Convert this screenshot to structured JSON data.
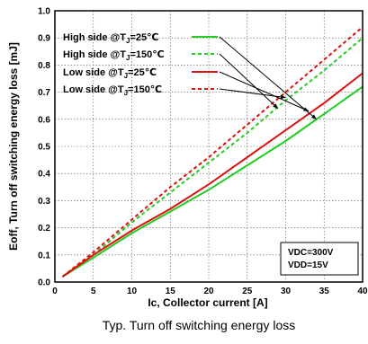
{
  "chart_data": {
    "type": "line",
    "title": "",
    "caption": "Typ. Turn off switching energy loss",
    "xlabel": "Ic, Collector current [A]",
    "ylabel": "Eoff, Turn off switching energy loss [mJ]",
    "xlim": [
      0,
      40
    ],
    "ylim": [
      0,
      1.0
    ],
    "xticks": [
      "0",
      "5",
      "10",
      "15",
      "20",
      "25",
      "30",
      "35",
      "40"
    ],
    "yticks": [
      "0.0",
      "0.1",
      "0.2",
      "0.3",
      "0.4",
      "0.5",
      "0.6",
      "0.7",
      "0.8",
      "0.9",
      "1.0"
    ],
    "grid": true,
    "legend_position": "top-left",
    "conditions": [
      "VDC=300V",
      "VDD=15V"
    ],
    "series": [
      {
        "name": "High side @TJ=25℃",
        "legend": {
          "prefix": "High side @T",
          "sub": "J",
          "suffix": "=25℃"
        },
        "color": "#22cc22",
        "dash": "solid",
        "x": [
          1,
          5,
          10,
          15,
          20,
          25,
          30,
          35,
          40
        ],
        "y": [
          0.02,
          0.09,
          0.18,
          0.26,
          0.34,
          0.43,
          0.52,
          0.62,
          0.72
        ]
      },
      {
        "name": "High side @TJ=150℃",
        "legend": {
          "prefix": "High side @T",
          "sub": "J",
          "suffix": "=150℃"
        },
        "color": "#22cc22",
        "dash": "dash",
        "x": [
          1,
          5,
          10,
          15,
          20,
          25,
          30,
          35,
          40
        ],
        "y": [
          0.02,
          0.1,
          0.22,
          0.33,
          0.44,
          0.55,
          0.67,
          0.78,
          0.9
        ]
      },
      {
        "name": "Low side @TJ=25℃",
        "legend": {
          "prefix": "Low side @T",
          "sub": "J",
          "suffix": "=25℃"
        },
        "color": "#dd1111",
        "dash": "solid",
        "x": [
          1,
          5,
          10,
          15,
          20,
          25,
          30,
          35,
          40
        ],
        "y": [
          0.02,
          0.1,
          0.19,
          0.27,
          0.36,
          0.46,
          0.56,
          0.66,
          0.77
        ]
      },
      {
        "name": "Low side @TJ=150℃",
        "legend": {
          "prefix": "Low side @T",
          "sub": "J",
          "suffix": "=150℃"
        },
        "color": "#dd1111",
        "dash": "dash",
        "x": [
          1,
          5,
          10,
          15,
          20,
          25,
          30,
          35,
          40
        ],
        "y": [
          0.02,
          0.11,
          0.23,
          0.35,
          0.46,
          0.58,
          0.7,
          0.82,
          0.94
        ]
      }
    ],
    "annotations": [
      {
        "series": 0,
        "target": [
          34,
          0.6
        ]
      },
      {
        "series": 1,
        "target": [
          29,
          0.64
        ]
      },
      {
        "series": 2,
        "target": [
          33,
          0.63
        ]
      },
      {
        "series": 3,
        "target": [
          30,
          0.68
        ]
      }
    ]
  }
}
